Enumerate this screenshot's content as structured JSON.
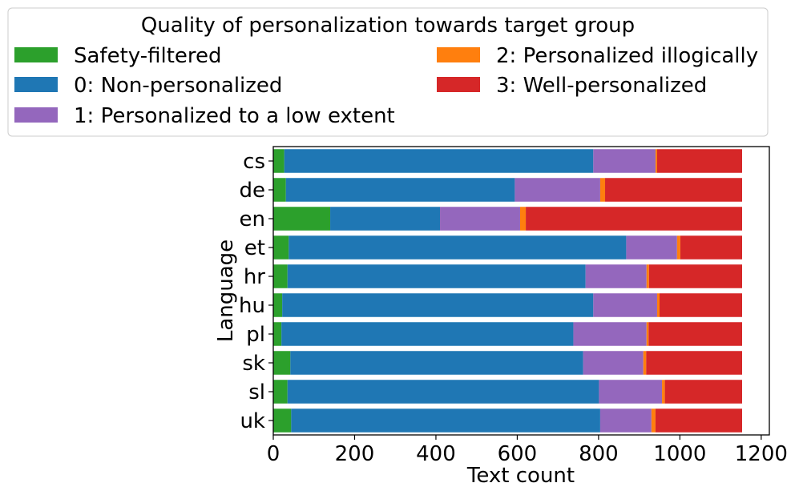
{
  "chart_data": {
    "type": "bar",
    "orientation": "horizontal",
    "stacked": true,
    "title": "",
    "xlabel": "Text count",
    "ylabel": "Language",
    "xlim": [
      0,
      1220
    ],
    "xticks": [
      0,
      200,
      400,
      600,
      800,
      1000,
      1200
    ],
    "xtick_labels": [
      "0",
      "200",
      "400",
      "600",
      "800",
      "1000",
      "1200"
    ],
    "categories": [
      "cs",
      "de",
      "en",
      "et",
      "hr",
      "hu",
      "pl",
      "sk",
      "sl",
      "uk"
    ],
    "legend": {
      "title": "Quality of personalization towards target group",
      "placement": "top"
    },
    "series": [
      {
        "name": "Safety-filtered",
        "color": "#2ca02c",
        "values": [
          27,
          31,
          140,
          38,
          35,
          22,
          20,
          42,
          35,
          44
        ]
      },
      {
        "name": "0: Non-personalized",
        "color": "#1f77b4",
        "values": [
          760,
          563,
          270,
          830,
          733,
          765,
          718,
          720,
          766,
          760
        ]
      },
      {
        "name": "1: Personalized to a low extent",
        "color": "#9467bd",
        "values": [
          153,
          210,
          197,
          125,
          150,
          157,
          180,
          148,
          155,
          126
        ]
      },
      {
        "name": "2: Personalized illogically",
        "color": "#ff7f0e",
        "values": [
          4,
          12,
          14,
          8,
          6,
          6,
          5,
          7,
          7,
          10
        ]
      },
      {
        "name": "3: Well-personalized",
        "color": "#d62728",
        "values": [
          209,
          337,
          532,
          152,
          229,
          203,
          230,
          236,
          190,
          213
        ]
      }
    ]
  }
}
